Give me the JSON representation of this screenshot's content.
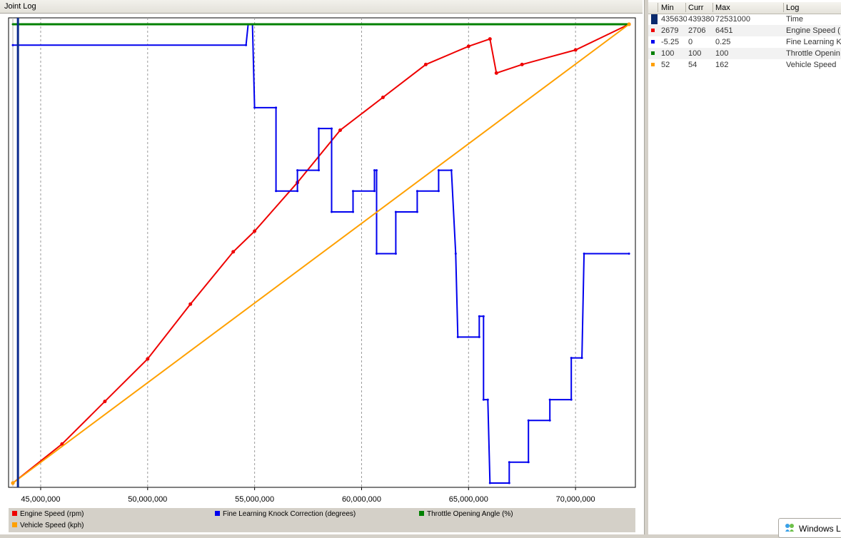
{
  "window": {
    "title": "Joint Log"
  },
  "table": {
    "headers": {
      "min": "Min",
      "curr": "Curr",
      "max": "Max",
      "log": "Log"
    },
    "rows": [
      {
        "color": "#0a2a6e",
        "min": "435630",
        "curr": "439380",
        "max": "72531000",
        "log": "Time"
      },
      {
        "color": "#ee0000",
        "min": "2679",
        "curr": "2706",
        "max": "6451",
        "log": "Engine Speed ("
      },
      {
        "color": "#0000ee",
        "min": "-5.25",
        "curr": "0",
        "max": "0.25",
        "log": "Fine Learning K"
      },
      {
        "color": "#008000",
        "min": "100",
        "curr": "100",
        "max": "100",
        "log": "Throttle Openin"
      },
      {
        "color": "#ffa000",
        "min": "52",
        "curr": "54",
        "max": "162",
        "log": "Vehicle Speed"
      }
    ]
  },
  "taskbar": {
    "label": "Windows L"
  },
  "chart_data": {
    "type": "line",
    "x_range": [
      43700000,
      72531000
    ],
    "x_ticks": [
      45000000,
      50000000,
      55000000,
      60000000,
      65000000,
      70000000
    ],
    "x_tick_labels": [
      "45,000,000",
      "50,000,000",
      "55,000,000",
      "60,000,000",
      "65,000,000",
      "70,000,000"
    ],
    "cursor_x": 43938000,
    "grid": "vertical dashed",
    "legend_position": "bottom",
    "series": [
      {
        "name": "Engine Speed (rpm)",
        "color": "#ee0000",
        "range": [
          2679,
          6451
        ],
        "points": [
          [
            43700000,
            2679
          ],
          [
            46000000,
            3000
          ],
          [
            48000000,
            3350
          ],
          [
            50000000,
            3700
          ],
          [
            52000000,
            4150
          ],
          [
            54000000,
            4580
          ],
          [
            55000000,
            4750
          ],
          [
            57000000,
            5150
          ],
          [
            59000000,
            5580
          ],
          [
            61000000,
            5850
          ],
          [
            63000000,
            6120
          ],
          [
            65000000,
            6270
          ],
          [
            66000000,
            6330
          ],
          [
            66300000,
            6050
          ],
          [
            67500000,
            6120
          ],
          [
            70000000,
            6240
          ],
          [
            72500000,
            6451
          ]
        ]
      },
      {
        "name": "Fine Learning Knock Correction (degrees)",
        "color": "#0000ee",
        "range": [
          -5.25,
          0.25
        ],
        "points": [
          [
            43700000,
            0
          ],
          [
            54600000,
            0
          ],
          [
            54700000,
            0.25
          ],
          [
            54900000,
            0.25
          ],
          [
            55000000,
            -0.75
          ],
          [
            56000000,
            -0.75
          ],
          [
            56000000,
            -1.75
          ],
          [
            57000000,
            -1.75
          ],
          [
            57000000,
            -1.5
          ],
          [
            58000000,
            -1.5
          ],
          [
            58000000,
            -1.0
          ],
          [
            58600000,
            -1.0
          ],
          [
            58600000,
            -2.0
          ],
          [
            59600000,
            -2.0
          ],
          [
            59600000,
            -1.75
          ],
          [
            60600000,
            -1.75
          ],
          [
            60600000,
            -1.5
          ],
          [
            60700000,
            -1.5
          ],
          [
            60700000,
            -2.5
          ],
          [
            61600000,
            -2.5
          ],
          [
            61600000,
            -2.0
          ],
          [
            62600000,
            -2.0
          ],
          [
            62600000,
            -1.75
          ],
          [
            63600000,
            -1.75
          ],
          [
            63600000,
            -1.5
          ],
          [
            64200000,
            -1.5
          ],
          [
            64400000,
            -2.5
          ],
          [
            64500000,
            -3.5
          ],
          [
            65500000,
            -3.5
          ],
          [
            65500000,
            -3.25
          ],
          [
            65700000,
            -3.25
          ],
          [
            65700000,
            -4.25
          ],
          [
            65900000,
            -4.25
          ],
          [
            66000000,
            -5.25
          ],
          [
            66900000,
            -5.25
          ],
          [
            66900000,
            -5.0
          ],
          [
            67800000,
            -5.0
          ],
          [
            67800000,
            -4.5
          ],
          [
            68800000,
            -4.5
          ],
          [
            68800000,
            -4.25
          ],
          [
            69800000,
            -4.25
          ],
          [
            69800000,
            -3.75
          ],
          [
            70300000,
            -3.75
          ],
          [
            70400000,
            -2.5
          ],
          [
            72500000,
            -2.5
          ]
        ]
      },
      {
        "name": "Throttle Opening Angle (%)",
        "color": "#008000",
        "range": [
          0,
          100
        ],
        "points": [
          [
            43700000,
            100
          ],
          [
            72500000,
            100
          ]
        ]
      },
      {
        "name": "Vehicle Speed (kph)",
        "color": "#ffa000",
        "range": [
          52,
          162
        ],
        "points": [
          [
            43700000,
            52
          ],
          [
            72500000,
            162
          ]
        ]
      }
    ]
  }
}
